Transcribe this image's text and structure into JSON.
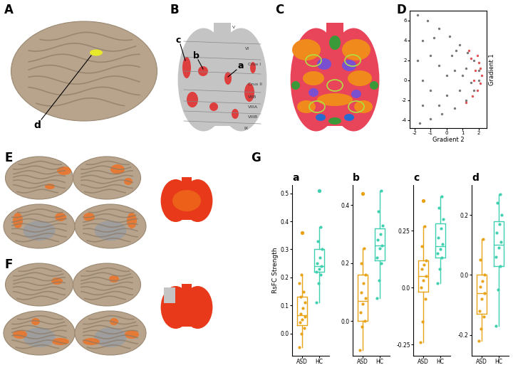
{
  "panel_labels": [
    "A",
    "B",
    "C",
    "D",
    "E",
    "F",
    "G"
  ],
  "panel_A": {
    "region_label": "d"
  },
  "panel_B": {
    "region_labels": [
      "a",
      "b",
      "c"
    ],
    "lobule_labels": [
      "V",
      "VI",
      "Crus I",
      "Crus II",
      "VIIB",
      "VIIIA",
      "VIIIB",
      "IX"
    ]
  },
  "chart_data": [
    {
      "type": "scatter",
      "xlabel": "Gradient 2",
      "ylabel": "Gradient 1",
      "xlim": [
        -2.3,
        2.5
      ],
      "ylim": [
        -4.8,
        7
      ],
      "xticks": [
        -2,
        -1,
        0,
        1,
        2
      ],
      "yticks": [
        -4,
        -2,
        0,
        2,
        4,
        6
      ],
      "series": [
        {
          "color": "#555555",
          "x": [
            -1.8,
            -1.2,
            -0.5,
            0.2,
            0.8,
            1.3,
            1.7,
            2.0,
            2.0,
            1.7,
            1.2,
            0.5,
            -0.3,
            -1.0,
            -1.7,
            -1.5,
            -1.0,
            -0.5,
            0.0,
            0.5,
            1.0,
            -1.5,
            -1.0,
            0.0,
            -0.5,
            -1.5,
            -0.8,
            0.3,
            1.2,
            0.8,
            -1.8,
            1.5,
            0.6
          ],
          "y": [
            6.6,
            6.0,
            5.2,
            4.4,
            3.6,
            2.8,
            2.0,
            1.0,
            0.0,
            -1.0,
            -2.0,
            -2.8,
            -3.4,
            -3.9,
            -4.3,
            4.0,
            2.5,
            1.5,
            0.5,
            1.0,
            0.5,
            0.0,
            -1.0,
            -1.5,
            -2.5,
            -2.5,
            4.3,
            2.5,
            1.2,
            -1.0,
            2.0,
            -0.2,
            3.0
          ]
        },
        {
          "color": "#d62728",
          "x": [
            1.9,
            2.0,
            2.1,
            2.2,
            2.1,
            1.9,
            1.6,
            1.4,
            1.7,
            1.8,
            1.5,
            1.2
          ],
          "y": [
            2.5,
            1.8,
            1.2,
            0.5,
            -0.3,
            -1.0,
            -1.6,
            3.0,
            0.0,
            1.0,
            2.2,
            -2.2
          ]
        }
      ]
    },
    {
      "type": "box",
      "title": "a",
      "ylabel": "RsFC Strength",
      "categories": [
        "ASD",
        "HC"
      ],
      "colors": [
        "#e8a317",
        "#3fd0b0"
      ],
      "ylim": [
        -0.08,
        0.53
      ],
      "yticks": [
        0.0,
        0.1,
        0.2,
        0.3,
        0.4,
        0.5
      ],
      "stats": [
        {
          "whislo": -0.05,
          "q1": 0.03,
          "med": 0.065,
          "q3": 0.13,
          "whishi": 0.21
        },
        {
          "whislo": 0.11,
          "q1": 0.22,
          "med": 0.24,
          "q3": 0.3,
          "whishi": 0.38
        }
      ],
      "points": [
        [
          -0.05,
          0.0,
          0.02,
          0.04,
          0.05,
          0.06,
          0.07,
          0.09,
          0.11,
          0.13,
          0.15,
          0.18,
          0.21
        ],
        [
          0.11,
          0.18,
          0.21,
          0.22,
          0.23,
          0.24,
          0.25,
          0.27,
          0.3,
          0.33,
          0.38
        ]
      ],
      "outliers": [
        [
          0.36
        ],
        [
          0.51
        ]
      ]
    },
    {
      "type": "box",
      "title": "b",
      "categories": [
        "ASD",
        "HC"
      ],
      "colors": [
        "#e8a317",
        "#3fd0b0"
      ],
      "ylim": [
        -0.12,
        0.47
      ],
      "yticks": [
        0.0,
        0.2,
        0.4
      ],
      "stats": [
        {
          "whislo": -0.1,
          "q1": 0.0,
          "med": 0.07,
          "q3": 0.16,
          "whishi": 0.25
        },
        {
          "whislo": 0.08,
          "q1": 0.21,
          "med": 0.26,
          "q3": 0.32,
          "whishi": 0.45
        }
      ],
      "points": [
        [
          -0.1,
          -0.02,
          0.0,
          0.03,
          0.06,
          0.08,
          0.1,
          0.13,
          0.16,
          0.2,
          0.25
        ],
        [
          0.08,
          0.14,
          0.2,
          0.22,
          0.25,
          0.26,
          0.28,
          0.3,
          0.33,
          0.38,
          0.45
        ]
      ],
      "outliers": [
        [
          0.44
        ],
        []
      ]
    },
    {
      "type": "box",
      "title": "c",
      "categories": [
        "ASD",
        "HC"
      ],
      "colors": [
        "#e8a317",
        "#3fd0b0"
      ],
      "ylim": [
        -0.3,
        0.45
      ],
      "yticks": [
        -0.25,
        0.0,
        0.25
      ],
      "stats": [
        {
          "whislo": -0.24,
          "q1": -0.02,
          "med": 0.05,
          "q3": 0.12,
          "whishi": 0.27
        },
        {
          "whislo": 0.02,
          "q1": 0.13,
          "med": 0.18,
          "q3": 0.28,
          "whishi": 0.4
        }
      ],
      "points": [
        [
          -0.24,
          -0.15,
          -0.05,
          0.0,
          0.03,
          0.05,
          0.08,
          0.1,
          0.12,
          0.18,
          0.27
        ],
        [
          0.02,
          0.08,
          0.13,
          0.15,
          0.17,
          0.19,
          0.22,
          0.26,
          0.3,
          0.35,
          0.4
        ]
      ],
      "outliers": [
        [
          0.38
        ],
        []
      ]
    },
    {
      "type": "box",
      "title": "d",
      "categories": [
        "ASD",
        "HC"
      ],
      "colors": [
        "#e8a317",
        "#3fd0b0"
      ],
      "ylim": [
        -0.27,
        0.3
      ],
      "yticks": [
        -0.2,
        0.0,
        0.2
      ],
      "stats": [
        {
          "whislo": -0.22,
          "q1": -0.13,
          "med": -0.06,
          "q3": 0.0,
          "whishi": 0.12
        },
        {
          "whislo": -0.17,
          "q1": 0.03,
          "med": 0.1,
          "q3": 0.18,
          "whishi": 0.27
        }
      ],
      "points": [
        [
          -0.22,
          -0.18,
          -0.14,
          -0.12,
          -0.08,
          -0.06,
          -0.04,
          -0.02,
          0.0,
          0.05,
          0.12
        ],
        [
          -0.17,
          -0.05,
          0.03,
          0.06,
          0.09,
          0.11,
          0.14,
          0.17,
          0.2,
          0.24,
          0.27
        ]
      ],
      "outliers": [
        [],
        []
      ]
    }
  ]
}
